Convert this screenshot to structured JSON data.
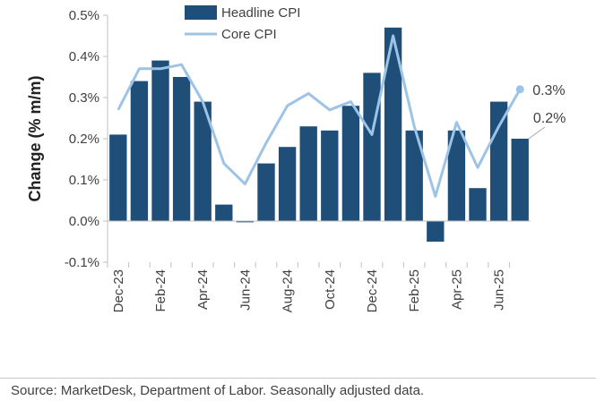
{
  "chart_data": {
    "type": "bar",
    "ylabel": "Change (% m/m)",
    "ylim": [
      -0.1,
      0.5
    ],
    "yticks": [
      -0.1,
      0.0,
      0.1,
      0.2,
      0.3,
      0.4,
      0.5
    ],
    "ytick_labels": [
      "-0.1%",
      "0.0%",
      "0.1%",
      "0.2%",
      "0.3%",
      "0.4%",
      "0.5%"
    ],
    "categories": [
      "Dec-23",
      "Jan-24",
      "Feb-24",
      "Mar-24",
      "Apr-24",
      "May-24",
      "Jun-24",
      "Jul-24",
      "Aug-24",
      "Sep-24",
      "Oct-24",
      "Nov-24",
      "Dec-24",
      "Jan-25",
      "Feb-25",
      "Mar-25",
      "Apr-25",
      "May-25",
      "Jun-25",
      "Jul-25"
    ],
    "xtick_labels": [
      "Dec-23",
      "",
      "Feb-24",
      "",
      "Apr-24",
      "",
      "Jun-24",
      "",
      "Aug-24",
      "",
      "Oct-24",
      "",
      "Dec-24",
      "",
      "Feb-25",
      "",
      "Apr-25",
      "",
      "Jun-25",
      ""
    ],
    "series": [
      {
        "name": "Headline CPI",
        "type": "bar",
        "color": "#1f4e79",
        "values": [
          0.21,
          0.34,
          0.39,
          0.35,
          0.29,
          0.04,
          -0.003,
          0.14,
          0.18,
          0.23,
          0.22,
          0.28,
          0.36,
          0.47,
          0.22,
          -0.05,
          0.22,
          0.08,
          0.29,
          0.2
        ]
      },
      {
        "name": "Core CPI",
        "type": "line",
        "color": "#9dc3e6",
        "values": [
          0.27,
          0.37,
          0.37,
          0.38,
          0.29,
          0.14,
          0.09,
          0.19,
          0.28,
          0.31,
          0.27,
          0.29,
          0.21,
          0.45,
          0.23,
          0.06,
          0.24,
          0.13,
          0.23,
          0.32
        ]
      }
    ],
    "annotations": [
      {
        "text": "0.3%",
        "series": "Core CPI",
        "category": "Jul-25"
      },
      {
        "text": "0.2%",
        "series": "Headline CPI",
        "category": "Jul-25"
      }
    ],
    "legend": "top"
  },
  "source_note": "Source: MarketDesk, Department of Labor. Seasonally adjusted data."
}
